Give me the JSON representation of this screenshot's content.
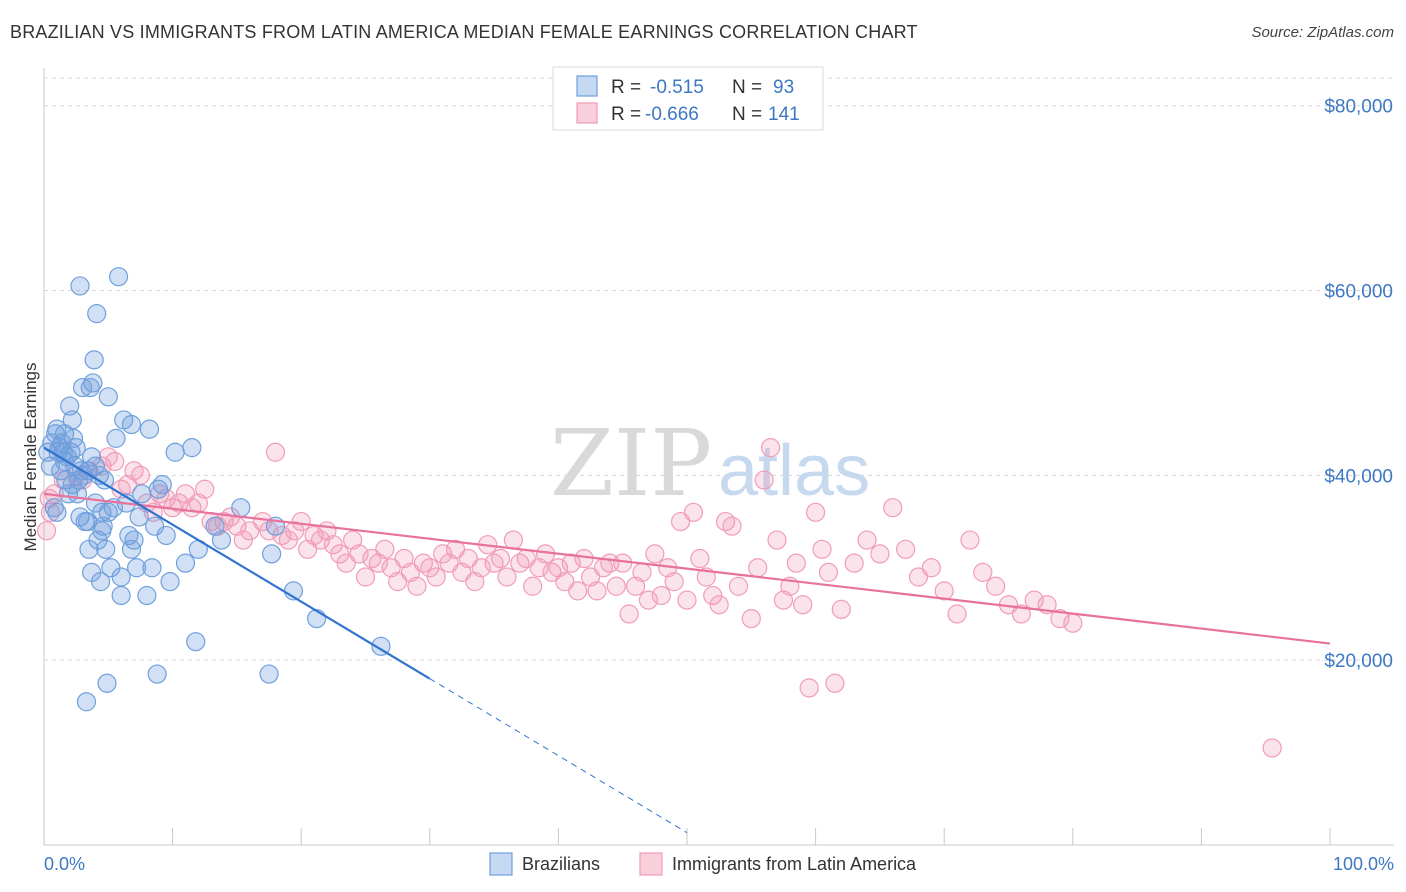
{
  "header": {
    "title": "BRAZILIAN VS IMMIGRANTS FROM LATIN AMERICA MEDIAN FEMALE EARNINGS CORRELATION CHART",
    "source": "Source: ZipAtlas.com"
  },
  "watermark": {
    "zip": "ZIP",
    "atlas": "atlas"
  },
  "colors": {
    "blue": "#6fa0dc",
    "blue_line": "#2f74d0",
    "pink": "#f19cb8",
    "pink_line": "#e8729b",
    "axis_text": "#3c78c3",
    "grid": "#d8d8d8"
  },
  "legend": {
    "rows": [
      {
        "r_label": "R =",
        "r_value": "-0.515",
        "n_label": "N =",
        "n_value": "93"
      },
      {
        "r_label": "R =",
        "r_value": "-0.666",
        "n_label": "N =",
        "n_value": "141"
      }
    ]
  },
  "bottom_legend": [
    "Brazilians",
    "Immigrants from Latin America"
  ],
  "chart_data": {
    "type": "scatter",
    "title": "BRAZILIAN VS IMMIGRANTS FROM LATIN AMERICA MEDIAN FEMALE EARNINGS CORRELATION CHART",
    "xlabel": "",
    "ylabel": "Median Female Earnings",
    "xlim": [
      0,
      100
    ],
    "ylim": [
      0,
      83000
    ],
    "x_tick_labels": [
      "0.0%",
      "100.0%"
    ],
    "y_ticks": [
      20000,
      40000,
      60000,
      80000
    ],
    "y_tick_labels": [
      "$20,000",
      "$40,000",
      "$60,000",
      "$80,000"
    ],
    "grid": true,
    "legend_position": "top-center",
    "series": [
      {
        "name": "Brazilians",
        "r": -0.515,
        "n": 93,
        "trend": {
          "x0": 0,
          "y0": 43000,
          "x1": 30,
          "y1": 18000,
          "dash_to_x": 50
        },
        "points": [
          [
            0.3,
            42500
          ],
          [
            0.5,
            41000
          ],
          [
            0.6,
            43500
          ],
          [
            0.8,
            36500
          ],
          [
            0.9,
            44500
          ],
          [
            1.0,
            45000
          ],
          [
            1.1,
            42500
          ],
          [
            1.2,
            43000
          ],
          [
            1.3,
            40500
          ],
          [
            1.4,
            43500
          ],
          [
            1.5,
            42500
          ],
          [
            1.6,
            44500
          ],
          [
            1.7,
            39500
          ],
          [
            1.8,
            42000
          ],
          [
            1.9,
            38000
          ],
          [
            2.0,
            47500
          ],
          [
            2.1,
            42500
          ],
          [
            2.2,
            46000
          ],
          [
            2.3,
            44000
          ],
          [
            2.4,
            41000
          ],
          [
            2.5,
            43000
          ],
          [
            2.6,
            38000
          ],
          [
            2.7,
            39500
          ],
          [
            2.8,
            60500
          ],
          [
            2.9,
            40500
          ],
          [
            3.0,
            49500
          ],
          [
            3.1,
            40000
          ],
          [
            3.2,
            35000
          ],
          [
            3.3,
            15500
          ],
          [
            3.4,
            35000
          ],
          [
            3.5,
            32000
          ],
          [
            3.6,
            49500
          ],
          [
            3.7,
            42000
          ],
          [
            3.8,
            50000
          ],
          [
            3.9,
            52500
          ],
          [
            4.0,
            41000
          ],
          [
            4.1,
            57500
          ],
          [
            4.2,
            33000
          ],
          [
            4.3,
            40000
          ],
          [
            4.4,
            28500
          ],
          [
            4.5,
            36000
          ],
          [
            4.6,
            34500
          ],
          [
            4.7,
            39500
          ],
          [
            4.8,
            32000
          ],
          [
            4.9,
            17500
          ],
          [
            5.0,
            48500
          ],
          [
            5.2,
            30000
          ],
          [
            5.4,
            36500
          ],
          [
            5.6,
            44000
          ],
          [
            5.8,
            61500
          ],
          [
            6.0,
            27000
          ],
          [
            6.2,
            46000
          ],
          [
            6.4,
            37000
          ],
          [
            6.6,
            33500
          ],
          [
            6.8,
            45500
          ],
          [
            7.0,
            33000
          ],
          [
            7.2,
            30000
          ],
          [
            7.4,
            35500
          ],
          [
            8.0,
            27000
          ],
          [
            8.2,
            45000
          ],
          [
            8.4,
            30000
          ],
          [
            8.6,
            34500
          ],
          [
            8.8,
            18500
          ],
          [
            9.2,
            39000
          ],
          [
            9.5,
            33500
          ],
          [
            9.8,
            28500
          ],
          [
            10.2,
            42500
          ],
          [
            11.0,
            30500
          ],
          [
            11.5,
            43000
          ],
          [
            11.8,
            22000
          ],
          [
            12.0,
            32000
          ],
          [
            13.3,
            34500
          ],
          [
            13.8,
            33000
          ],
          [
            15.3,
            36500
          ],
          [
            17.7,
            31500
          ],
          [
            17.5,
            18500
          ],
          [
            18.0,
            34500
          ],
          [
            19.4,
            27500
          ],
          [
            21.2,
            24500
          ],
          [
            26.2,
            21500
          ],
          [
            1.6,
            41500
          ],
          [
            2.2,
            39000
          ],
          [
            3.4,
            40500
          ],
          [
            4.0,
            37000
          ],
          [
            5.0,
            36000
          ],
          [
            6.0,
            29000
          ],
          [
            6.8,
            32000
          ],
          [
            7.6,
            38000
          ],
          [
            8.9,
            38500
          ],
          [
            1.0,
            36000
          ],
          [
            2.8,
            35500
          ],
          [
            3.7,
            29500
          ],
          [
            4.5,
            34000
          ]
        ]
      },
      {
        "name": "Immigrants from Latin America",
        "r": -0.666,
        "n": 141,
        "trend": {
          "x0": 0,
          "y0": 38000,
          "x1": 100,
          "y1": 21800
        },
        "points": [
          [
            0.2,
            34000
          ],
          [
            0.4,
            37500
          ],
          [
            0.5,
            36000
          ],
          [
            0.8,
            38000
          ],
          [
            1.5,
            39500
          ],
          [
            2.5,
            40000
          ],
          [
            3.0,
            39500
          ],
          [
            3.5,
            40500
          ],
          [
            4.5,
            41000
          ],
          [
            5.0,
            42000
          ],
          [
            5.5,
            41500
          ],
          [
            6.0,
            38500
          ],
          [
            6.5,
            39000
          ],
          [
            7.0,
            40500
          ],
          [
            7.5,
            40000
          ],
          [
            8.0,
            37000
          ],
          [
            8.5,
            36000
          ],
          [
            9.0,
            38000
          ],
          [
            9.5,
            37500
          ],
          [
            10.0,
            36500
          ],
          [
            10.5,
            37000
          ],
          [
            11.0,
            38000
          ],
          [
            11.5,
            36500
          ],
          [
            12.0,
            37000
          ],
          [
            12.5,
            38500
          ],
          [
            13.0,
            35000
          ],
          [
            13.5,
            34500
          ],
          [
            14.0,
            35000
          ],
          [
            14.5,
            35500
          ],
          [
            15.0,
            34500
          ],
          [
            15.5,
            33000
          ],
          [
            16.0,
            34000
          ],
          [
            17.0,
            35000
          ],
          [
            17.5,
            34000
          ],
          [
            18.0,
            42500
          ],
          [
            18.5,
            33500
          ],
          [
            19.0,
            33000
          ],
          [
            19.5,
            34000
          ],
          [
            20.0,
            35000
          ],
          [
            20.5,
            32000
          ],
          [
            21.0,
            33500
          ],
          [
            21.5,
            33000
          ],
          [
            22.0,
            34000
          ],
          [
            22.5,
            32500
          ],
          [
            23.0,
            31500
          ],
          [
            23.5,
            30500
          ],
          [
            24.0,
            33000
          ],
          [
            24.5,
            31500
          ],
          [
            25.0,
            29000
          ],
          [
            25.5,
            31000
          ],
          [
            26.0,
            30500
          ],
          [
            26.5,
            32000
          ],
          [
            27.0,
            30000
          ],
          [
            27.5,
            28500
          ],
          [
            28.0,
            31000
          ],
          [
            28.5,
            29500
          ],
          [
            29.0,
            28000
          ],
          [
            29.5,
            30500
          ],
          [
            30.0,
            30000
          ],
          [
            30.5,
            29000
          ],
          [
            31.0,
            31500
          ],
          [
            31.5,
            30500
          ],
          [
            32.0,
            32000
          ],
          [
            32.5,
            29500
          ],
          [
            33.0,
            31000
          ],
          [
            33.5,
            28500
          ],
          [
            34.0,
            30000
          ],
          [
            34.5,
            32500
          ],
          [
            35.0,
            30500
          ],
          [
            35.5,
            31000
          ],
          [
            36.0,
            29000
          ],
          [
            36.5,
            33000
          ],
          [
            37.0,
            30500
          ],
          [
            37.5,
            31000
          ],
          [
            38.0,
            28000
          ],
          [
            38.5,
            30000
          ],
          [
            39.0,
            31500
          ],
          [
            39.5,
            29500
          ],
          [
            40.0,
            30000
          ],
          [
            40.5,
            28500
          ],
          [
            41.0,
            30500
          ],
          [
            41.5,
            27500
          ],
          [
            42.0,
            31000
          ],
          [
            42.5,
            29000
          ],
          [
            43.0,
            27500
          ],
          [
            43.5,
            30000
          ],
          [
            44.0,
            30500
          ],
          [
            44.5,
            28000
          ],
          [
            45.0,
            30500
          ],
          [
            45.5,
            25000
          ],
          [
            46.0,
            28000
          ],
          [
            46.5,
            29500
          ],
          [
            47.0,
            26500
          ],
          [
            47.5,
            31500
          ],
          [
            48.0,
            27000
          ],
          [
            48.5,
            30000
          ],
          [
            49.0,
            28500
          ],
          [
            49.5,
            35000
          ],
          [
            50.0,
            26500
          ],
          [
            50.5,
            36000
          ],
          [
            51.0,
            31000
          ],
          [
            51.5,
            29000
          ],
          [
            52.0,
            27000
          ],
          [
            52.5,
            26000
          ],
          [
            53.0,
            35000
          ],
          [
            53.5,
            34500
          ],
          [
            54.0,
            28000
          ],
          [
            55.0,
            24500
          ],
          [
            55.5,
            30000
          ],
          [
            56.0,
            39500
          ],
          [
            56.5,
            43000
          ],
          [
            57.0,
            33000
          ],
          [
            57.5,
            26500
          ],
          [
            58.0,
            28000
          ],
          [
            58.5,
            30500
          ],
          [
            59.0,
            26000
          ],
          [
            60.0,
            36000
          ],
          [
            60.5,
            32000
          ],
          [
            61.0,
            29500
          ],
          [
            62.0,
            25500
          ],
          [
            63.0,
            30500
          ],
          [
            64.0,
            33000
          ],
          [
            65.0,
            31500
          ],
          [
            66.0,
            36500
          ],
          [
            67.0,
            32000
          ],
          [
            68.0,
            29000
          ],
          [
            69.0,
            30000
          ],
          [
            70.0,
            27500
          ],
          [
            71.0,
            25000
          ],
          [
            72.0,
            33000
          ],
          [
            73.0,
            29500
          ],
          [
            74.0,
            28000
          ],
          [
            75.0,
            26000
          ],
          [
            76.0,
            25000
          ],
          [
            77.0,
            26500
          ],
          [
            78.0,
            26000
          ],
          [
            79.0,
            24500
          ],
          [
            80.0,
            24000
          ],
          [
            59.5,
            17000
          ],
          [
            61.5,
            17500
          ],
          [
            95.5,
            10500
          ]
        ]
      }
    ]
  }
}
